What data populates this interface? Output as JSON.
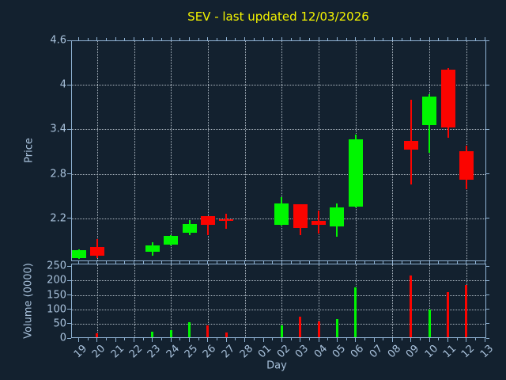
{
  "title": "SEV - last updated 12/03/2026",
  "axes": {
    "price": {
      "label": "Price",
      "tick_labels": [
        "4.6",
        "4",
        "3.4",
        "2.8",
        "2.2"
      ],
      "tick_values": [
        4.6,
        4,
        3.4,
        2.8,
        2.2
      ],
      "grid_values": [
        4,
        3.4,
        2.8,
        2.2
      ],
      "ylim": [
        1.62,
        4.6
      ]
    },
    "volume": {
      "label": "Volume (0000)",
      "tick_labels": [
        "250",
        "200",
        "150",
        "100",
        "50",
        "0"
      ],
      "tick_values": [
        250,
        200,
        150,
        100,
        50,
        0
      ],
      "grid_values": [
        200,
        150,
        100,
        50
      ],
      "ylim": [
        0,
        259
      ]
    },
    "x": {
      "label": "Day",
      "tick_labels": [
        "19",
        "20",
        "21",
        "22",
        "23",
        "24",
        "25",
        "26",
        "27",
        "28",
        "01",
        "02",
        "03",
        "04",
        "05",
        "06",
        "07",
        "08",
        "09",
        "10",
        "11",
        "12",
        "13"
      ],
      "gridline_days": [
        "20",
        "22",
        "24",
        "26",
        "28",
        "02",
        "04",
        "06",
        "08",
        "10",
        "12"
      ]
    }
  },
  "colors": {
    "background": "#13212f",
    "up": "#00f600",
    "down": "#fb0400",
    "title": "#f5f500",
    "axis_spine": "#8fb2d3",
    "tick_text": "#a9c2dc",
    "grid": "#cad3dd"
  },
  "chart_data": {
    "type": "candlestick",
    "title": "SEV - last updated 12/03/2026",
    "xlabel": "Day",
    "ylabel_price": "Price",
    "ylabel_volume": "Volume (0000)",
    "price_ylim": [
      1.62,
      4.6
    ],
    "volume_ylim": [
      0,
      259
    ],
    "grid": true,
    "legend": false,
    "days": [
      "19",
      "20",
      "21",
      "22",
      "23",
      "24",
      "25",
      "26",
      "27",
      "28",
      "01",
      "02",
      "03",
      "04",
      "05",
      "06",
      "07",
      "08",
      "09",
      "10",
      "11",
      "12",
      "13"
    ],
    "candles": [
      {
        "day": "19",
        "open": 1.66,
        "high": 1.78,
        "low": 1.65,
        "close": 1.77,
        "volume": 0
      },
      {
        "day": "20",
        "open": 1.81,
        "high": 1.92,
        "low": 1.66,
        "close": 1.7,
        "volume": 16
      },
      {
        "day": "23",
        "open": 1.75,
        "high": 1.88,
        "low": 1.7,
        "close": 1.83,
        "volume": 22
      },
      {
        "day": "24",
        "open": 1.84,
        "high": 1.97,
        "low": 1.83,
        "close": 1.96,
        "volume": 28
      },
      {
        "day": "25",
        "open": 2.0,
        "high": 2.18,
        "low": 1.97,
        "close": 2.12,
        "volume": 54
      },
      {
        "day": "26",
        "open": 2.23,
        "high": 2.23,
        "low": 1.97,
        "close": 2.11,
        "volume": 43
      },
      {
        "day": "27",
        "open": 2.19,
        "high": 2.26,
        "low": 2.06,
        "close": 2.17,
        "volume": 19
      },
      {
        "day": "02",
        "open": 2.11,
        "high": 2.48,
        "low": 2.1,
        "close": 2.4,
        "volume": 43
      },
      {
        "day": "03",
        "open": 2.39,
        "high": 2.39,
        "low": 1.97,
        "close": 2.07,
        "volume": 75
      },
      {
        "day": "04",
        "open": 2.17,
        "high": 2.3,
        "low": 1.99,
        "close": 2.11,
        "volume": 57
      },
      {
        "day": "05",
        "open": 2.09,
        "high": 2.4,
        "low": 1.95,
        "close": 2.35,
        "volume": 66
      },
      {
        "day": "06",
        "open": 2.36,
        "high": 3.33,
        "low": 2.35,
        "close": 3.27,
        "volume": 175
      },
      {
        "day": "09",
        "open": 3.24,
        "high": 3.8,
        "low": 2.66,
        "close": 3.13,
        "volume": 218
      },
      {
        "day": "10",
        "open": 3.46,
        "high": 3.87,
        "low": 3.08,
        "close": 3.84,
        "volume": 100
      },
      {
        "day": "11",
        "open": 4.2,
        "high": 4.23,
        "low": 3.29,
        "close": 3.43,
        "volume": 159
      },
      {
        "day": "12",
        "open": 3.1,
        "high": 3.18,
        "low": 2.59,
        "close": 2.72,
        "volume": 184
      }
    ]
  }
}
